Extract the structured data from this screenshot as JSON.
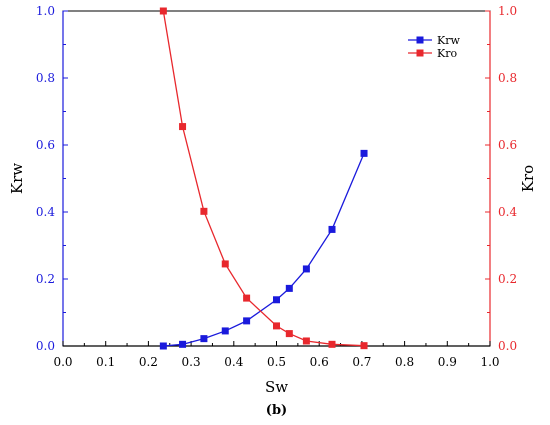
{
  "colors": {
    "left_axis": "#1a1adc",
    "right_axis": "#e8282d",
    "krw": "#1a1adc",
    "kro": "#e8282d"
  },
  "caption": "(b)",
  "chart_data": {
    "type": "line",
    "xlabel": "Sw",
    "ylabel_left": "Krw",
    "ylabel_right": "Kro",
    "xlim": [
      0.0,
      1.0
    ],
    "ylim": [
      0.0,
      1.0
    ],
    "y2lim": [
      0.0,
      1.0
    ],
    "x_ticks": [
      "0.0",
      "0.1",
      "0.2",
      "0.3",
      "0.4",
      "0.5",
      "0.6",
      "0.7",
      "0.8",
      "0.9",
      "1.0"
    ],
    "y_ticks": [
      "0.0",
      "0.2",
      "0.4",
      "0.6",
      "0.8",
      "1.0"
    ],
    "y2_ticks": [
      "0.0",
      "0.2",
      "0.4",
      "0.6",
      "0.8",
      "1.0"
    ],
    "grid": false,
    "legend_position": "top-right",
    "series": [
      {
        "name": "Krw",
        "axis": "left",
        "color": "#1a1adc",
        "marker": "square",
        "x": [
          0.235,
          0.28,
          0.33,
          0.38,
          0.43,
          0.5,
          0.53,
          0.57,
          0.63,
          0.705
        ],
        "y": [
          0.0,
          0.005,
          0.022,
          0.045,
          0.075,
          0.138,
          0.172,
          0.23,
          0.348,
          0.575
        ]
      },
      {
        "name": "Kro",
        "axis": "right",
        "color": "#e8282d",
        "marker": "square",
        "x": [
          0.235,
          0.28,
          0.33,
          0.38,
          0.43,
          0.5,
          0.53,
          0.57,
          0.63,
          0.705
        ],
        "y": [
          1.0,
          0.655,
          0.402,
          0.245,
          0.143,
          0.06,
          0.037,
          0.015,
          0.005,
          0.001
        ]
      }
    ]
  }
}
